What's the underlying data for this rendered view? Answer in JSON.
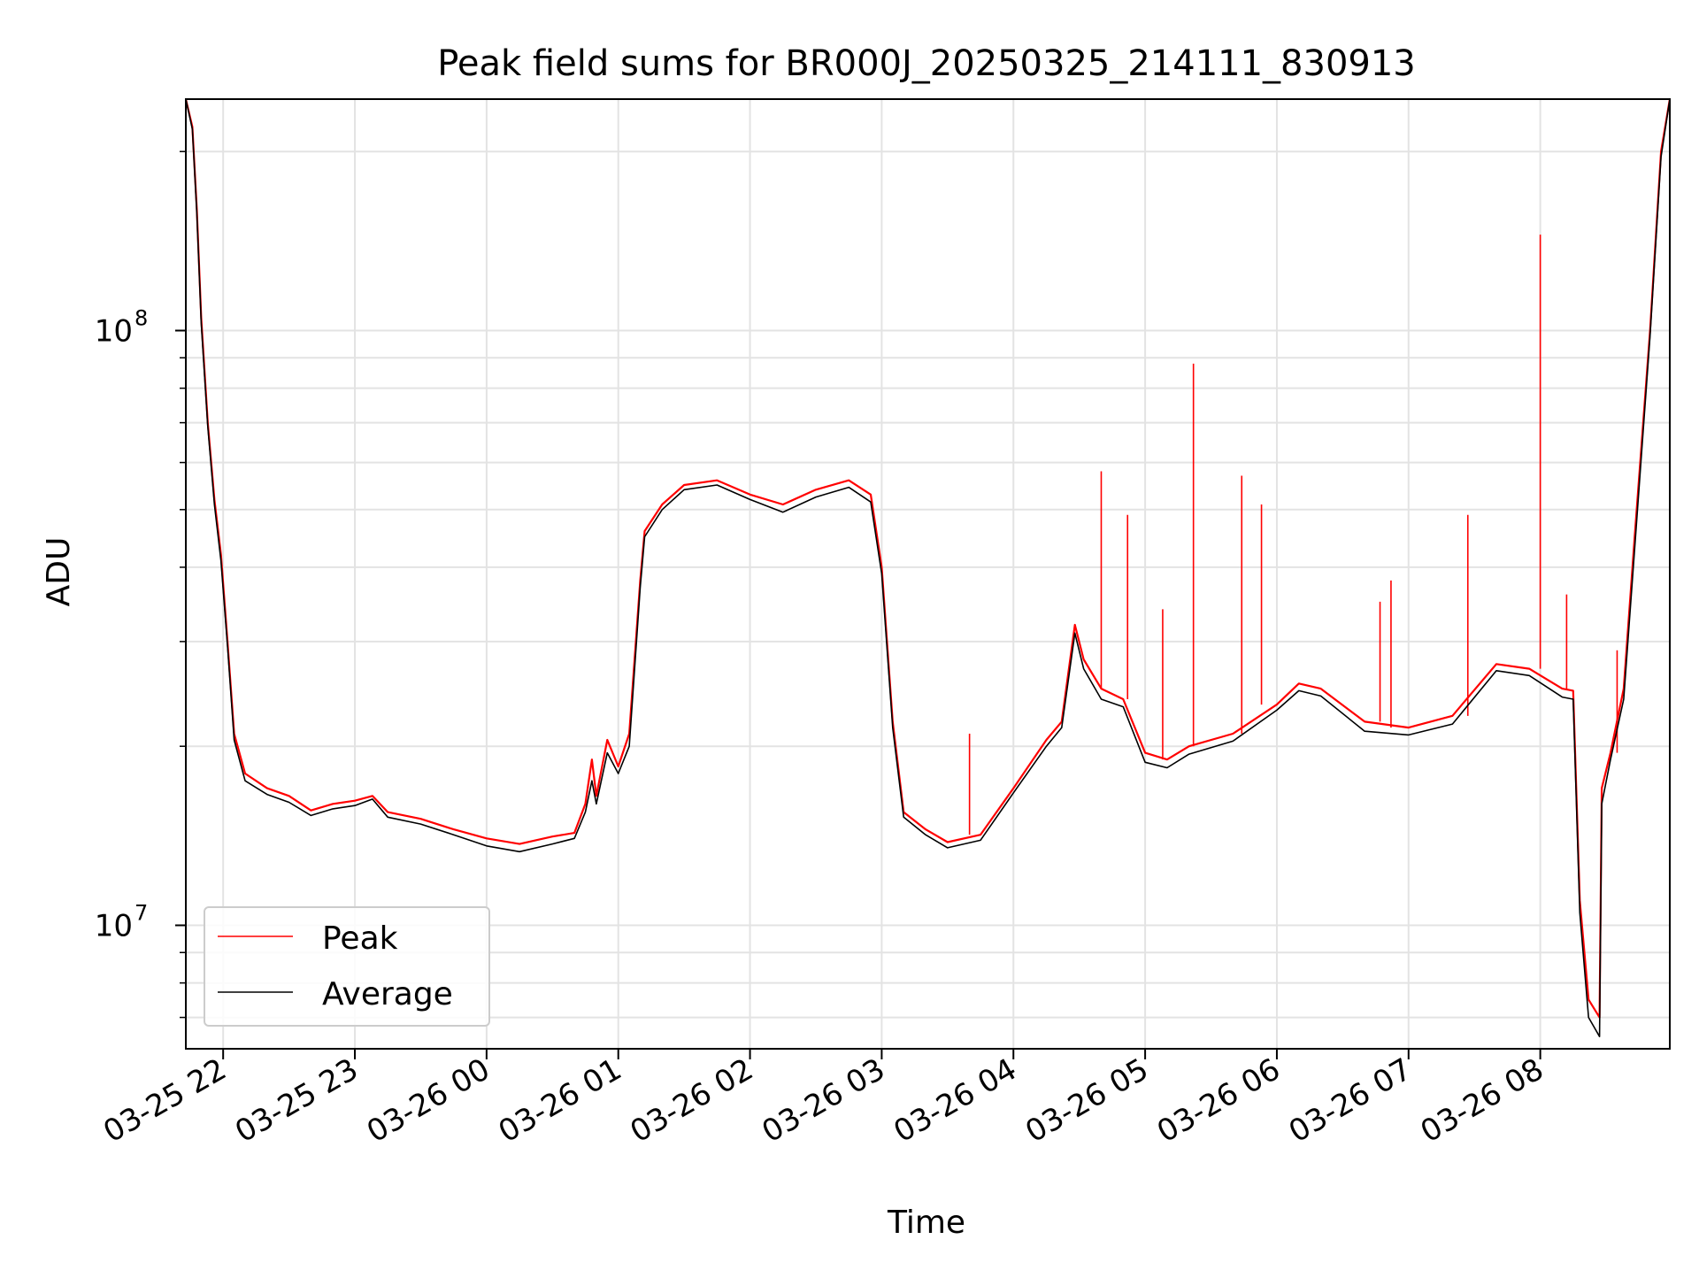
{
  "chart_data": {
    "type": "line",
    "title": "Peak field sums for BR000J_20250325_214111_830913",
    "xlabel": "Time",
    "ylabel": "ADU",
    "yscale": "log",
    "grid": true,
    "legend_position": "lower-left",
    "xlim": [
      "2025-03-25 21:43",
      "2025-03-26 08:59"
    ],
    "ylim": [
      6200000,
      245000000
    ],
    "x_ticks": [
      {
        "time": "2025-03-25 22:00",
        "label": "03-25 22"
      },
      {
        "time": "2025-03-25 23:00",
        "label": "03-25 23"
      },
      {
        "time": "2025-03-26 00:00",
        "label": "03-26 00"
      },
      {
        "time": "2025-03-26 01:00",
        "label": "03-26 01"
      },
      {
        "time": "2025-03-26 02:00",
        "label": "03-26 02"
      },
      {
        "time": "2025-03-26 03:00",
        "label": "03-26 03"
      },
      {
        "time": "2025-03-26 04:00",
        "label": "03-26 04"
      },
      {
        "time": "2025-03-26 05:00",
        "label": "03-26 05"
      },
      {
        "time": "2025-03-26 06:00",
        "label": "03-26 06"
      },
      {
        "time": "2025-03-26 07:00",
        "label": "03-26 07"
      },
      {
        "time": "2025-03-26 08:00",
        "label": "03-26 08"
      }
    ],
    "y_ticks": [
      {
        "value": 10000000,
        "base": "10",
        "exp": "7"
      },
      {
        "value": 100000000,
        "base": "10",
        "exp": "8"
      }
    ],
    "series": [
      {
        "name": "Peak",
        "color": "#ff0000",
        "points": [
          [
            "2025-03-25 21:43",
            245000000
          ],
          [
            "2025-03-25 21:46",
            220000000
          ],
          [
            "2025-03-25 21:48",
            160000000
          ],
          [
            "2025-03-25 21:50",
            105000000
          ],
          [
            "2025-03-25 21:53",
            70000000
          ],
          [
            "2025-03-25 21:56",
            52000000
          ],
          [
            "2025-03-25 21:59",
            42000000
          ],
          [
            "2025-03-25 22:02",
            30000000
          ],
          [
            "2025-03-25 22:05",
            21000000
          ],
          [
            "2025-03-25 22:10",
            18000000
          ],
          [
            "2025-03-25 22:20",
            17000000
          ],
          [
            "2025-03-25 22:30",
            16500000
          ],
          [
            "2025-03-25 22:40",
            15600000
          ],
          [
            "2025-03-25 22:50",
            16000000
          ],
          [
            "2025-03-25 23:00",
            16200000
          ],
          [
            "2025-03-25 23:08",
            16500000
          ],
          [
            "2025-03-25 23:15",
            15500000
          ],
          [
            "2025-03-25 23:30",
            15100000
          ],
          [
            "2025-03-25 23:45",
            14500000
          ],
          [
            "2025-03-26 00:00",
            14000000
          ],
          [
            "2025-03-26 00:15",
            13700000
          ],
          [
            "2025-03-26 00:30",
            14100000
          ],
          [
            "2025-03-26 00:40",
            14300000
          ],
          [
            "2025-03-26 00:45",
            16000000
          ],
          [
            "2025-03-26 00:48",
            19000000
          ],
          [
            "2025-03-26 00:50",
            16500000
          ],
          [
            "2025-03-26 00:55",
            20500000
          ],
          [
            "2025-03-26 01:00",
            18500000
          ],
          [
            "2025-03-26 01:05",
            21000000
          ],
          [
            "2025-03-26 01:10",
            38000000
          ],
          [
            "2025-03-26 01:12",
            46000000
          ],
          [
            "2025-03-26 01:20",
            51000000
          ],
          [
            "2025-03-26 01:30",
            55000000
          ],
          [
            "2025-03-26 01:45",
            56000000
          ],
          [
            "2025-03-26 02:00",
            53000000
          ],
          [
            "2025-03-26 02:15",
            51000000
          ],
          [
            "2025-03-26 02:30",
            54000000
          ],
          [
            "2025-03-26 02:45",
            56000000
          ],
          [
            "2025-03-26 02:55",
            53000000
          ],
          [
            "2025-03-26 03:00",
            40000000
          ],
          [
            "2025-03-26 03:05",
            22000000
          ],
          [
            "2025-03-26 03:10",
            15500000
          ],
          [
            "2025-03-26 03:20",
            14500000
          ],
          [
            "2025-03-26 03:30",
            13800000
          ],
          [
            "2025-03-26 03:45",
            14200000
          ],
          [
            "2025-03-26 04:00",
            17000000
          ],
          [
            "2025-03-26 04:15",
            20500000
          ],
          [
            "2025-03-26 04:22",
            22000000
          ],
          [
            "2025-03-26 04:28",
            32000000
          ],
          [
            "2025-03-26 04:32",
            28000000
          ],
          [
            "2025-03-26 04:40",
            25000000
          ],
          [
            "2025-03-26 04:50",
            24000000
          ],
          [
            "2025-03-26 05:00",
            19500000
          ],
          [
            "2025-03-26 05:10",
            19000000
          ],
          [
            "2025-03-26 05:20",
            20000000
          ],
          [
            "2025-03-26 05:40",
            21000000
          ],
          [
            "2025-03-26 06:00",
            23500000
          ],
          [
            "2025-03-26 06:10",
            25500000
          ],
          [
            "2025-03-26 06:20",
            25000000
          ],
          [
            "2025-03-26 06:40",
            22000000
          ],
          [
            "2025-03-26 07:00",
            21500000
          ],
          [
            "2025-03-26 07:20",
            22500000
          ],
          [
            "2025-03-26 07:40",
            27500000
          ],
          [
            "2025-03-26 07:55",
            27000000
          ],
          [
            "2025-03-26 08:10",
            25000000
          ],
          [
            "2025-03-26 08:15",
            24800000
          ],
          [
            "2025-03-26 08:18",
            11000000
          ],
          [
            "2025-03-26 08:22",
            7500000
          ],
          [
            "2025-03-26 08:27",
            7000000
          ],
          [
            "2025-03-26 08:28",
            17000000
          ],
          [
            "2025-03-26 08:32",
            19500000
          ],
          [
            "2025-03-26 08:38",
            25000000
          ],
          [
            "2025-03-26 08:43",
            45000000
          ],
          [
            "2025-03-26 08:50",
            100000000
          ],
          [
            "2025-03-26 08:55",
            200000000
          ],
          [
            "2025-03-26 08:59",
            245000000
          ]
        ],
        "spikes": [
          [
            "2025-03-26 03:40",
            21000000
          ],
          [
            "2025-03-26 04:40",
            58000000
          ],
          [
            "2025-03-26 04:52",
            49000000
          ],
          [
            "2025-03-26 05:08",
            34000000
          ],
          [
            "2025-03-26 05:22",
            88000000
          ],
          [
            "2025-03-26 05:44",
            57000000
          ],
          [
            "2025-03-26 05:53",
            51000000
          ],
          [
            "2025-03-26 06:47",
            35000000
          ],
          [
            "2025-03-26 06:52",
            38000000
          ],
          [
            "2025-03-26 07:27",
            49000000
          ],
          [
            "2025-03-26 08:00",
            145000000
          ],
          [
            "2025-03-26 08:12",
            36000000
          ],
          [
            "2025-03-26 08:35",
            29000000
          ]
        ]
      },
      {
        "name": "Average",
        "color": "#000000",
        "points": [
          [
            "2025-03-25 21:43",
            245000000
          ],
          [
            "2025-03-25 21:46",
            218000000
          ],
          [
            "2025-03-25 21:48",
            158000000
          ],
          [
            "2025-03-25 21:50",
            103000000
          ],
          [
            "2025-03-25 21:53",
            69000000
          ],
          [
            "2025-03-25 21:56",
            51000000
          ],
          [
            "2025-03-25 21:59",
            41000000
          ],
          [
            "2025-03-25 22:02",
            29500000
          ],
          [
            "2025-03-25 22:05",
            20500000
          ],
          [
            "2025-03-25 22:10",
            17500000
          ],
          [
            "2025-03-25 22:20",
            16600000
          ],
          [
            "2025-03-25 22:30",
            16100000
          ],
          [
            "2025-03-25 22:40",
            15300000
          ],
          [
            "2025-03-25 22:50",
            15700000
          ],
          [
            "2025-03-25 23:00",
            15900000
          ],
          [
            "2025-03-25 23:08",
            16300000
          ],
          [
            "2025-03-25 23:15",
            15200000
          ],
          [
            "2025-03-25 23:30",
            14800000
          ],
          [
            "2025-03-25 23:45",
            14200000
          ],
          [
            "2025-03-26 00:00",
            13600000
          ],
          [
            "2025-03-26 00:15",
            13300000
          ],
          [
            "2025-03-26 00:30",
            13700000
          ],
          [
            "2025-03-26 00:40",
            14000000
          ],
          [
            "2025-03-26 00:45",
            15500000
          ],
          [
            "2025-03-26 00:48",
            17500000
          ],
          [
            "2025-03-26 00:50",
            16000000
          ],
          [
            "2025-03-26 00:55",
            19500000
          ],
          [
            "2025-03-26 01:00",
            18000000
          ],
          [
            "2025-03-26 01:05",
            20000000
          ],
          [
            "2025-03-26 01:10",
            37000000
          ],
          [
            "2025-03-26 01:12",
            45000000
          ],
          [
            "2025-03-26 01:20",
            50000000
          ],
          [
            "2025-03-26 01:30",
            54000000
          ],
          [
            "2025-03-26 01:45",
            55000000
          ],
          [
            "2025-03-26 02:00",
            52000000
          ],
          [
            "2025-03-26 02:15",
            49500000
          ],
          [
            "2025-03-26 02:30",
            52500000
          ],
          [
            "2025-03-26 02:45",
            54500000
          ],
          [
            "2025-03-26 02:55",
            51500000
          ],
          [
            "2025-03-26 03:00",
            39000000
          ],
          [
            "2025-03-26 03:05",
            21500000
          ],
          [
            "2025-03-26 03:10",
            15200000
          ],
          [
            "2025-03-26 03:20",
            14200000
          ],
          [
            "2025-03-26 03:30",
            13500000
          ],
          [
            "2025-03-26 03:45",
            13900000
          ],
          [
            "2025-03-26 04:00",
            16700000
          ],
          [
            "2025-03-26 04:15",
            20000000
          ],
          [
            "2025-03-26 04:22",
            21500000
          ],
          [
            "2025-03-26 04:28",
            31000000
          ],
          [
            "2025-03-26 04:32",
            27000000
          ],
          [
            "2025-03-26 04:40",
            24000000
          ],
          [
            "2025-03-26 04:50",
            23300000
          ],
          [
            "2025-03-26 05:00",
            18800000
          ],
          [
            "2025-03-26 05:10",
            18400000
          ],
          [
            "2025-03-26 05:20",
            19400000
          ],
          [
            "2025-03-26 05:40",
            20400000
          ],
          [
            "2025-03-26 06:00",
            23000000
          ],
          [
            "2025-03-26 06:10",
            24800000
          ],
          [
            "2025-03-26 06:20",
            24300000
          ],
          [
            "2025-03-26 06:40",
            21200000
          ],
          [
            "2025-03-26 07:00",
            20900000
          ],
          [
            "2025-03-26 07:20",
            21800000
          ],
          [
            "2025-03-26 07:40",
            26800000
          ],
          [
            "2025-03-26 07:55",
            26300000
          ],
          [
            "2025-03-26 08:10",
            24200000
          ],
          [
            "2025-03-26 08:15",
            24000000
          ],
          [
            "2025-03-26 08:18",
            10500000
          ],
          [
            "2025-03-26 08:22",
            7000000
          ],
          [
            "2025-03-26 08:27",
            6500000
          ],
          [
            "2025-03-26 08:28",
            16000000
          ],
          [
            "2025-03-26 08:32",
            19000000
          ],
          [
            "2025-03-26 08:38",
            24000000
          ],
          [
            "2025-03-26 08:43",
            43000000
          ],
          [
            "2025-03-26 08:50",
            98000000
          ],
          [
            "2025-03-26 08:55",
            196000000
          ],
          [
            "2025-03-26 08:59",
            245000000
          ]
        ]
      }
    ]
  }
}
